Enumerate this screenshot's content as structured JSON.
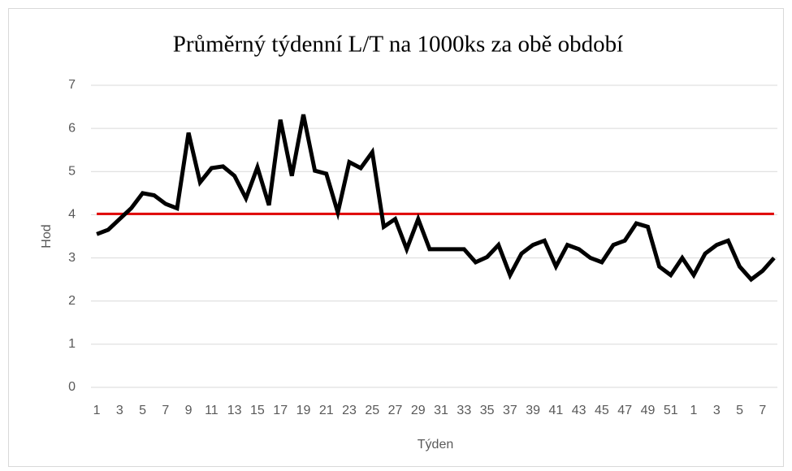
{
  "chart_data": {
    "type": "line",
    "title": "Průměrný týdenní L/T na 1000ks za obě období",
    "x_label": "Týden",
    "y_label": "Hod",
    "categories": [
      "1",
      null,
      "3",
      null,
      "5",
      null,
      "7",
      null,
      "9",
      null,
      "11",
      null,
      "13",
      null,
      "15",
      null,
      "17",
      null,
      "19",
      null,
      "21",
      null,
      "23",
      null,
      "25",
      null,
      "27",
      null,
      "29",
      null,
      "31",
      null,
      "33",
      null,
      "35",
      null,
      "37",
      null,
      "39",
      null,
      "41",
      null,
      "43",
      null,
      "45",
      null,
      "47",
      null,
      "49",
      null,
      "51",
      null,
      "1",
      null,
      "3",
      null,
      "5",
      null,
      "7",
      null
    ],
    "series": [
      {
        "color": "#000000",
        "width": 5,
        "values": [
          3.55,
          3.65,
          3.9,
          4.15,
          4.5,
          4.45,
          4.25,
          4.15,
          5.9,
          4.75,
          5.08,
          5.12,
          4.9,
          4.38,
          5.1,
          4.22,
          6.2,
          4.9,
          6.32,
          5.02,
          4.95,
          4.05,
          5.22,
          5.08,
          5.45,
          3.72,
          3.9,
          3.2,
          3.9,
          3.2,
          3.2,
          3.2,
          3.2,
          2.9,
          3.02,
          3.3,
          2.6,
          3.1,
          3.3,
          3.4,
          2.8,
          3.3,
          3.2,
          3.0,
          2.9,
          3.3,
          3.4,
          3.8,
          3.72,
          2.8,
          2.6,
          3.0,
          2.6,
          3.1,
          3.3,
          3.4,
          2.8,
          2.5,
          2.7,
          3.0
        ]
      },
      {
        "color": "#e00000",
        "width": 3,
        "values": [
          4.02,
          4.02,
          4.02,
          4.02,
          4.02,
          4.02,
          4.02,
          4.02,
          4.02,
          4.02,
          4.02,
          4.02,
          4.02,
          4.02,
          4.02,
          4.02,
          4.02,
          4.02,
          4.02,
          4.02,
          4.02,
          4.02,
          4.02,
          4.02,
          4.02,
          4.02,
          4.02,
          4.02,
          4.02,
          4.02,
          4.02,
          4.02,
          4.02,
          4.02,
          4.02,
          4.02,
          4.02,
          4.02,
          4.02,
          4.02,
          4.02,
          4.02,
          4.02,
          4.02,
          4.02,
          4.02,
          4.02,
          4.02,
          4.02,
          4.02,
          4.02,
          4.02,
          4.02,
          4.02,
          4.02,
          4.02,
          4.02,
          4.02,
          4.02,
          4.02
        ]
      }
    ],
    "ylim": [
      0,
      7
    ],
    "yticks": [
      0,
      1,
      2,
      3,
      4,
      5,
      6,
      7
    ],
    "grid": true
  }
}
